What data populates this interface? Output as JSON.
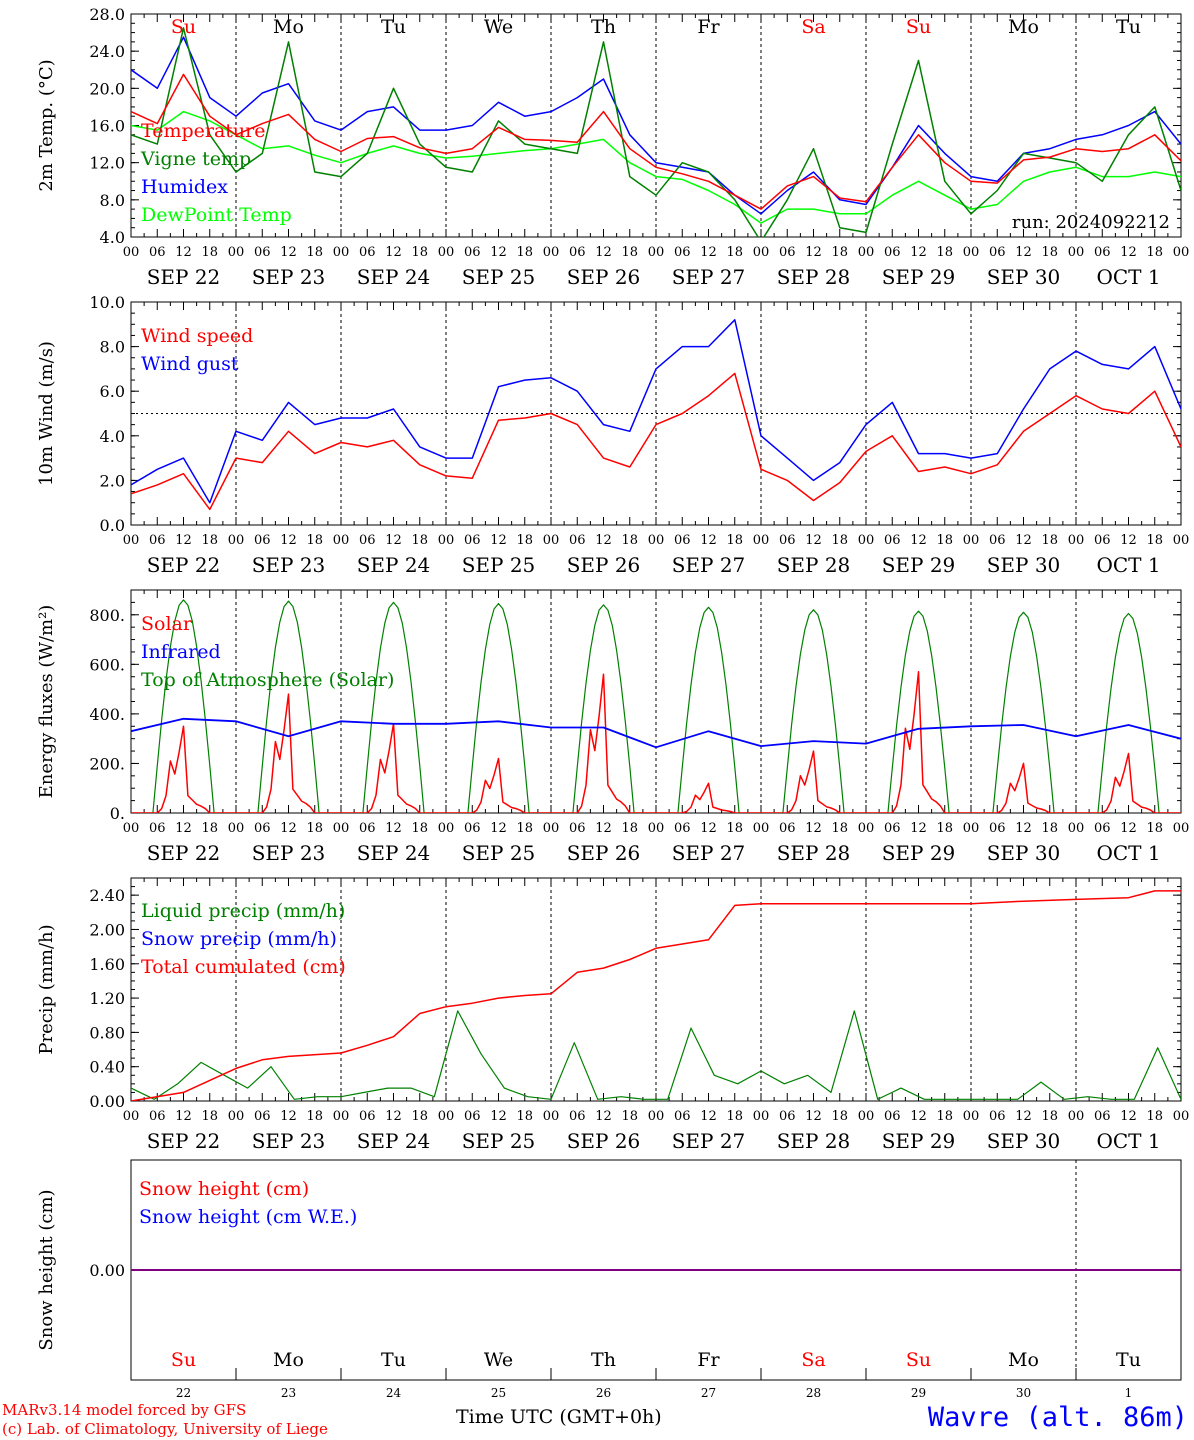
{
  "colors": {
    "red": "#ff0000",
    "green": "#008000",
    "blue": "#0000ff",
    "lightgreen": "#00ff00",
    "black": "#000000",
    "purple": "#800080"
  },
  "date_labels": [
    "SEP 22",
    "SEP 23",
    "SEP 24",
    "SEP 25",
    "SEP 26",
    "SEP 27",
    "SEP 28",
    "SEP 29",
    "SEP 30",
    "OCT  1"
  ],
  "hour_labels": [
    "00",
    "06",
    "12",
    "18"
  ],
  "hour_end_label": "00",
  "weekday_labels": [
    {
      "text": "Su",
      "color": "#ff0000"
    },
    {
      "text": "Mo",
      "color": "#000000"
    },
    {
      "text": "Tu",
      "color": "#000000"
    },
    {
      "text": "We",
      "color": "#000000"
    },
    {
      "text": "Th",
      "color": "#000000"
    },
    {
      "text": "Fr",
      "color": "#000000"
    },
    {
      "text": "Sa",
      "color": "#ff0000"
    },
    {
      "text": "Su",
      "color": "#ff0000"
    },
    {
      "text": "Mo",
      "color": "#000000"
    },
    {
      "text": "Tu",
      "color": "#000000"
    }
  ],
  "day_numbers": [
    "22",
    "23",
    "24",
    "25",
    "26",
    "27",
    "28",
    "29",
    "30",
    "1"
  ],
  "footer": {
    "model": "MARv3.14 model forced by GFS",
    "copyright": "(c) Lab. of Climatology, University of Liege",
    "time_label": "Time UTC (GMT+0h)",
    "location": "Wavre (alt. 86m)"
  },
  "chart_data": [
    {
      "type": "line",
      "ylabel": "2m Temp. (°C)",
      "ylim": [
        4,
        28
      ],
      "yticks": [
        "4.0",
        "8.0",
        "12.0",
        "16.0",
        "20.0",
        "24.0",
        "28.0"
      ],
      "annotation": "run: 2024092212",
      "x_hours": [
        0,
        6,
        12,
        18,
        24,
        30,
        36,
        42,
        48,
        54,
        60,
        66,
        72,
        78,
        84,
        90,
        96,
        102,
        108,
        114,
        120,
        126,
        132,
        138,
        144,
        150,
        156,
        162,
        168,
        174,
        180,
        186,
        192,
        198,
        204,
        210,
        216,
        222,
        228,
        234,
        240
      ],
      "series": [
        {
          "name": "Temperature",
          "color": "#ff0000",
          "values": [
            17.5,
            16.2,
            21.5,
            17.0,
            15.0,
            16.2,
            17.2,
            14.5,
            13.2,
            14.6,
            14.8,
            13.6,
            13.0,
            13.5,
            15.8,
            14.5,
            14.4,
            14.2,
            17.5,
            13.5,
            11.5,
            10.8,
            10.0,
            8.5,
            7.0,
            9.5,
            10.5,
            8.2,
            7.8,
            11.5,
            15.0,
            12.0,
            10.0,
            9.8,
            12.3,
            12.6,
            13.5,
            13.2,
            13.5,
            15.0,
            12.2
          ]
        },
        {
          "name": "Vigne temp",
          "color": "#008000",
          "values": [
            15.0,
            14.0,
            26.5,
            15.0,
            11.0,
            13.0,
            25.0,
            11.0,
            10.5,
            13.0,
            20.0,
            14.0,
            11.5,
            11.0,
            16.5,
            14.0,
            13.5,
            13.0,
            25.0,
            10.5,
            8.5,
            12.0,
            11.0,
            8.0,
            3.5,
            8.0,
            13.5,
            5.0,
            4.5,
            14.0,
            23.0,
            10.0,
            6.5,
            9.0,
            13.0,
            12.5,
            12.0,
            10.0,
            15.0,
            18.0,
            9.0
          ]
        },
        {
          "name": "Humidex",
          "color": "#0000ff",
          "values": [
            22.0,
            20.0,
            25.5,
            19.0,
            17.0,
            19.5,
            20.5,
            16.5,
            15.5,
            17.5,
            18.0,
            15.5,
            15.5,
            16.0,
            18.5,
            17.0,
            17.5,
            19.0,
            21.0,
            15.0,
            12.0,
            11.5,
            11.0,
            8.5,
            6.5,
            9.0,
            11.0,
            8.0,
            7.5,
            11.5,
            16.0,
            13.0,
            10.5,
            10.0,
            13.0,
            13.5,
            14.5,
            15.0,
            16.0,
            17.5,
            14.0
          ]
        },
        {
          "name": "DewPoint Temp",
          "color": "#00ff00",
          "values": [
            16.0,
            15.5,
            17.5,
            16.5,
            15.0,
            13.5,
            13.8,
            12.8,
            12.0,
            13.0,
            13.8,
            13.0,
            12.5,
            12.7,
            13.0,
            13.3,
            13.5,
            14.0,
            14.5,
            12.0,
            10.5,
            10.2,
            9.0,
            7.5,
            5.5,
            7.0,
            7.0,
            6.5,
            6.5,
            8.5,
            10.0,
            8.5,
            7.0,
            7.5,
            10.0,
            11.0,
            11.5,
            10.5,
            10.5,
            11.0,
            10.5
          ]
        }
      ]
    },
    {
      "type": "line",
      "ylabel": "10m Wind (m/s)",
      "ylim": [
        0,
        10
      ],
      "yticks": [
        "0.0",
        "2.0",
        "4.0",
        "6.0",
        "8.0",
        "10.0"
      ],
      "reference_line": 5.0,
      "x_hours": [
        0,
        6,
        12,
        18,
        24,
        30,
        36,
        42,
        48,
        54,
        60,
        66,
        72,
        78,
        84,
        90,
        96,
        102,
        108,
        114,
        120,
        126,
        132,
        138,
        144,
        150,
        156,
        162,
        168,
        174,
        180,
        186,
        192,
        198,
        204,
        210,
        216,
        222,
        228,
        234,
        240
      ],
      "series": [
        {
          "name": "Wind speed",
          "color": "#ff0000",
          "values": [
            1.4,
            1.8,
            2.3,
            0.7,
            3.0,
            2.8,
            4.2,
            3.2,
            3.7,
            3.5,
            3.8,
            2.7,
            2.2,
            2.1,
            4.7,
            4.8,
            5.0,
            4.5,
            3.0,
            2.6,
            4.5,
            5.0,
            5.8,
            6.8,
            2.5,
            2.0,
            1.1,
            1.9,
            3.3,
            4.0,
            2.4,
            2.6,
            2.3,
            2.7,
            4.2,
            5.0,
            5.8,
            5.2,
            5.0,
            6.0,
            3.5
          ]
        },
        {
          "name": "Wind gust",
          "color": "#0000ff",
          "values": [
            1.8,
            2.5,
            3.0,
            1.0,
            4.2,
            3.8,
            5.5,
            4.5,
            4.8,
            4.8,
            5.2,
            3.5,
            3.0,
            3.0,
            6.2,
            6.5,
            6.6,
            6.0,
            4.5,
            4.2,
            7.0,
            8.0,
            8.0,
            9.2,
            4.0,
            3.0,
            2.0,
            2.8,
            4.5,
            5.5,
            3.2,
            3.2,
            3.0,
            3.2,
            5.2,
            7.0,
            7.8,
            7.2,
            7.0,
            8.0,
            5.2
          ]
        }
      ]
    },
    {
      "type": "line",
      "ylabel": "Energy fluxes (W/m²)",
      "ylim": [
        0,
        900
      ],
      "yticks": [
        "0.",
        "200.",
        "400.",
        "600.",
        "800."
      ],
      "series": [
        {
          "name": "Solar",
          "color": "#ff0000",
          "peaks": [
            350,
            480,
            360,
            220,
            560,
            120,
            250,
            570,
            200,
            240
          ]
        },
        {
          "name": "Infrared",
          "color": "#0000ff",
          "values": [
            330,
            380,
            370,
            310,
            370,
            360,
            360,
            370,
            345,
            345,
            265,
            330,
            270,
            290,
            280,
            340,
            350,
            355,
            310,
            355,
            300
          ]
        },
        {
          "name": "Top of Atmosphere (Solar)",
          "color": "#008000",
          "peaks": [
            860,
            855,
            850,
            845,
            840,
            830,
            820,
            815,
            810,
            805
          ]
        }
      ]
    },
    {
      "type": "line",
      "ylabel": "Precip (mm/h)",
      "ylim": [
        0,
        2.6
      ],
      "yticks": [
        "0.00",
        "0.40",
        "0.80",
        "1.20",
        "1.60",
        "2.00",
        "2.40"
      ],
      "series": [
        {
          "name": "Liquid precip (mm/h)",
          "color": "#008000",
          "values": [
            0.15,
            0.02,
            0.2,
            0.45,
            0.3,
            0.15,
            0.4,
            0.02,
            0.05,
            0.05,
            0.1,
            0.15,
            0.15,
            0.05,
            1.05,
            0.55,
            0.15,
            0.05,
            0.02,
            0.68,
            0.02,
            0.05,
            0.02,
            0.02,
            0.85,
            0.3,
            0.2,
            0.35,
            0.2,
            0.3,
            0.1,
            1.05,
            0.02,
            0.15,
            0.02,
            0.02,
            0.02,
            0.02,
            0.02,
            0.22,
            0.02,
            0.05,
            0.02,
            0.02,
            0.62,
            0.02
          ]
        },
        {
          "name": "Snow precip (mm/h)",
          "color": "#0000ff",
          "values": [
            0.0,
            0.0
          ]
        },
        {
          "name": "Total cumulated (cm)",
          "color": "#ff0000",
          "x_hours": [
            0,
            12,
            24,
            30,
            36,
            48,
            54,
            60,
            66,
            72,
            78,
            84,
            90,
            96,
            102,
            108,
            114,
            120,
            126,
            132,
            138,
            144,
            168,
            192,
            204,
            216,
            228,
            234,
            240
          ],
          "values": [
            0.0,
            0.1,
            0.38,
            0.48,
            0.52,
            0.56,
            0.65,
            0.75,
            1.02,
            1.1,
            1.14,
            1.2,
            1.23,
            1.25,
            1.5,
            1.55,
            1.65,
            1.78,
            1.83,
            1.88,
            2.28,
            2.3,
            2.3,
            2.3,
            2.33,
            2.35,
            2.37,
            2.45,
            2.45
          ]
        }
      ]
    },
    {
      "type": "line",
      "ylabel": "Snow height (cm)",
      "ylim": [
        -1,
        1
      ],
      "yticks": [
        "0.00"
      ],
      "series": [
        {
          "name": "Snow height (cm)",
          "color": "#ff0000",
          "values": [
            0.0,
            0.0
          ]
        },
        {
          "name": "Snow height (cm W.E.)",
          "color": "#0000ff",
          "values": [
            0.0,
            0.0
          ]
        }
      ]
    }
  ]
}
